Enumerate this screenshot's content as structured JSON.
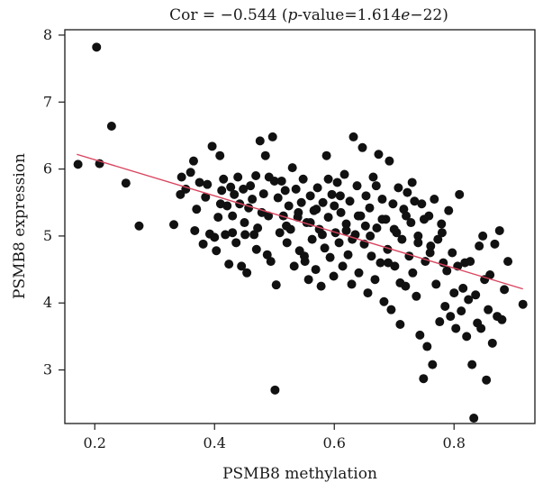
{
  "chart_data": {
    "type": "scatter",
    "title": {
      "prefix": "Cor = −0.544 (",
      "p_label": "p",
      "mid": "-value=1.614",
      "e_label": "e",
      "suffix": "−22)"
    },
    "xlabel": "PSMB8 methylation",
    "ylabel": "PSMB8 expression",
    "xlim": [
      0.15,
      0.935
    ],
    "ylim": [
      2.2,
      8.08
    ],
    "xticks": [
      {
        "value": 0.2,
        "label": "0.2"
      },
      {
        "value": 0.4,
        "label": "0.4"
      },
      {
        "value": 0.6,
        "label": "0.6"
      },
      {
        "value": 0.8,
        "label": "0.8"
      }
    ],
    "yticks": [
      {
        "value": 3,
        "label": "3"
      },
      {
        "value": 4,
        "label": "4"
      },
      {
        "value": 5,
        "label": "5"
      },
      {
        "value": 6,
        "label": "6"
      },
      {
        "value": 7,
        "label": "7"
      },
      {
        "value": 8,
        "label": "8"
      }
    ],
    "grid": false,
    "point_color": "#111111",
    "regression": {
      "x": [
        0.17,
        0.915
      ],
      "y": [
        6.22,
        4.21
      ],
      "color": "#d9455f"
    },
    "points": [
      {
        "x": 0.172,
        "y": 6.07
      },
      {
        "x": 0.203,
        "y": 7.82
      },
      {
        "x": 0.208,
        "y": 6.08
      },
      {
        "x": 0.228,
        "y": 6.64
      },
      {
        "x": 0.252,
        "y": 5.79
      },
      {
        "x": 0.274,
        "y": 5.15
      },
      {
        "x": 0.332,
        "y": 5.17
      },
      {
        "x": 0.343,
        "y": 5.62
      },
      {
        "x": 0.345,
        "y": 5.88
      },
      {
        "x": 0.352,
        "y": 5.7
      },
      {
        "x": 0.36,
        "y": 5.95
      },
      {
        "x": 0.365,
        "y": 6.12
      },
      {
        "x": 0.367,
        "y": 5.08
      },
      {
        "x": 0.37,
        "y": 5.4
      },
      {
        "x": 0.375,
        "y": 5.8
      },
      {
        "x": 0.381,
        "y": 4.88
      },
      {
        "x": 0.385,
        "y": 5.58
      },
      {
        "x": 0.388,
        "y": 5.77
      },
      {
        "x": 0.392,
        "y": 5.03
      },
      {
        "x": 0.396,
        "y": 6.34
      },
      {
        "x": 0.4,
        "y": 4.98
      },
      {
        "x": 0.403,
        "y": 4.78
      },
      {
        "x": 0.406,
        "y": 5.28
      },
      {
        "x": 0.409,
        "y": 6.2
      },
      {
        "x": 0.412,
        "y": 5.68
      },
      {
        "x": 0.415,
        "y": 5.85
      },
      {
        "x": 0.418,
        "y": 5.02
      },
      {
        "x": 0.421,
        "y": 5.45
      },
      {
        "x": 0.424,
        "y": 4.58
      },
      {
        "x": 0.427,
        "y": 5.73
      },
      {
        "x": 0.43,
        "y": 5.3
      },
      {
        "x": 0.433,
        "y": 5.62
      },
      {
        "x": 0.436,
        "y": 4.9
      },
      {
        "x": 0.439,
        "y": 5.88
      },
      {
        "x": 0.442,
        "y": 5.48
      },
      {
        "x": 0.445,
        "y": 4.55
      },
      {
        "x": 0.448,
        "y": 5.7
      },
      {
        "x": 0.451,
        "y": 5.02
      },
      {
        "x": 0.454,
        "y": 4.45
      },
      {
        "x": 0.457,
        "y": 5.42
      },
      {
        "x": 0.46,
        "y": 5.75
      },
      {
        "x": 0.463,
        "y": 5.55
      },
      {
        "x": 0.466,
        "y": 5.02
      },
      {
        "x": 0.469,
        "y": 5.9
      },
      {
        "x": 0.472,
        "y": 5.12
      },
      {
        "x": 0.476,
        "y": 6.42
      },
      {
        "x": 0.479,
        "y": 5.35
      },
      {
        "x": 0.482,
        "y": 5.63
      },
      {
        "x": 0.485,
        "y": 6.2
      },
      {
        "x": 0.488,
        "y": 4.72
      },
      {
        "x": 0.491,
        "y": 5.88
      },
      {
        "x": 0.494,
        "y": 4.62
      },
      {
        "x": 0.497,
        "y": 6.48
      },
      {
        "x": 0.5,
        "y": 5.82
      },
      {
        "x": 0.503,
        "y": 4.27
      },
      {
        "x": 0.501,
        "y": 2.7
      },
      {
        "x": 0.506,
        "y": 5.57
      },
      {
        "x": 0.509,
        "y": 5.05
      },
      {
        "x": 0.512,
        "y": 5.82
      },
      {
        "x": 0.515,
        "y": 5.3
      },
      {
        "x": 0.518,
        "y": 5.68
      },
      {
        "x": 0.521,
        "y": 4.9
      },
      {
        "x": 0.524,
        "y": 5.45
      },
      {
        "x": 0.527,
        "y": 5.1
      },
      {
        "x": 0.53,
        "y": 6.02
      },
      {
        "x": 0.533,
        "y": 4.55
      },
      {
        "x": 0.536,
        "y": 5.7
      },
      {
        "x": 0.539,
        "y": 5.28
      },
      {
        "x": 0.542,
        "y": 4.78
      },
      {
        "x": 0.545,
        "y": 5.5
      },
      {
        "x": 0.548,
        "y": 5.85
      },
      {
        "x": 0.551,
        "y": 4.62
      },
      {
        "x": 0.554,
        "y": 5.2
      },
      {
        "x": 0.557,
        "y": 4.35
      },
      {
        "x": 0.56,
        "y": 5.6
      },
      {
        "x": 0.563,
        "y": 4.95
      },
      {
        "x": 0.566,
        "y": 5.38
      },
      {
        "x": 0.569,
        "y": 4.5
      },
      {
        "x": 0.572,
        "y": 5.72
      },
      {
        "x": 0.575,
        "y": 5.1
      },
      {
        "x": 0.578,
        "y": 4.25
      },
      {
        "x": 0.581,
        "y": 5.5
      },
      {
        "x": 0.584,
        "y": 4.82
      },
      {
        "x": 0.587,
        "y": 6.2
      },
      {
        "x": 0.59,
        "y": 5.28
      },
      {
        "x": 0.593,
        "y": 4.68
      },
      {
        "x": 0.596,
        "y": 5.62
      },
      {
        "x": 0.599,
        "y": 4.4
      },
      {
        "x": 0.602,
        "y": 5.05
      },
      {
        "x": 0.605,
        "y": 5.8
      },
      {
        "x": 0.608,
        "y": 4.9
      },
      {
        "x": 0.611,
        "y": 5.35
      },
      {
        "x": 0.614,
        "y": 4.55
      },
      {
        "x": 0.617,
        "y": 5.92
      },
      {
        "x": 0.62,
        "y": 5.18
      },
      {
        "x": 0.623,
        "y": 4.72
      },
      {
        "x": 0.626,
        "y": 5.52
      },
      {
        "x": 0.629,
        "y": 4.28
      },
      {
        "x": 0.632,
        "y": 6.48
      },
      {
        "x": 0.635,
        "y": 5.02
      },
      {
        "x": 0.638,
        "y": 5.75
      },
      {
        "x": 0.641,
        "y": 4.45
      },
      {
        "x": 0.644,
        "y": 5.3
      },
      {
        "x": 0.647,
        "y": 6.32
      },
      {
        "x": 0.65,
        "y": 4.88
      },
      {
        "x": 0.653,
        "y": 5.6
      },
      {
        "x": 0.656,
        "y": 4.15
      },
      {
        "x": 0.659,
        "y": 5.42
      },
      {
        "x": 0.662,
        "y": 4.7
      },
      {
        "x": 0.665,
        "y": 5.88
      },
      {
        "x": 0.668,
        "y": 4.35
      },
      {
        "x": 0.671,
        "y": 5.12
      },
      {
        "x": 0.674,
        "y": 6.22
      },
      {
        "x": 0.677,
        "y": 4.6
      },
      {
        "x": 0.68,
        "y": 5.55
      },
      {
        "x": 0.683,
        "y": 4.02
      },
      {
        "x": 0.686,
        "y": 5.25
      },
      {
        "x": 0.689,
        "y": 4.8
      },
      {
        "x": 0.692,
        "y": 6.12
      },
      {
        "x": 0.695,
        "y": 3.9
      },
      {
        "x": 0.698,
        "y": 5.48
      },
      {
        "x": 0.701,
        "y": 4.55
      },
      {
        "x": 0.704,
        "y": 5.05
      },
      {
        "x": 0.707,
        "y": 5.72
      },
      {
        "x": 0.71,
        "y": 3.68
      },
      {
        "x": 0.713,
        "y": 4.95
      },
      {
        "x": 0.716,
        "y": 5.4
      },
      {
        "x": 0.719,
        "y": 4.25
      },
      {
        "x": 0.722,
        "y": 5.65
      },
      {
        "x": 0.725,
        "y": 4.7
      },
      {
        "x": 0.728,
        "y": 5.2
      },
      {
        "x": 0.731,
        "y": 4.45
      },
      {
        "x": 0.734,
        "y": 5.52
      },
      {
        "x": 0.737,
        "y": 4.1
      },
      {
        "x": 0.74,
        "y": 5.0
      },
      {
        "x": 0.743,
        "y": 3.52
      },
      {
        "x": 0.746,
        "y": 5.48
      },
      {
        "x": 0.749,
        "y": 2.87
      },
      {
        "x": 0.752,
        "y": 4.62
      },
      {
        "x": 0.755,
        "y": 3.35
      },
      {
        "x": 0.758,
        "y": 5.3
      },
      {
        "x": 0.761,
        "y": 4.85
      },
      {
        "x": 0.764,
        "y": 3.08
      },
      {
        "x": 0.767,
        "y": 5.55
      },
      {
        "x": 0.77,
        "y": 4.28
      },
      {
        "x": 0.773,
        "y": 4.95
      },
      {
        "x": 0.776,
        "y": 3.72
      },
      {
        "x": 0.779,
        "y": 5.18
      },
      {
        "x": 0.782,
        "y": 4.6
      },
      {
        "x": 0.785,
        "y": 3.95
      },
      {
        "x": 0.788,
        "y": 4.48
      },
      {
        "x": 0.791,
        "y": 5.38
      },
      {
        "x": 0.794,
        "y": 3.8
      },
      {
        "x": 0.797,
        "y": 4.75
      },
      {
        "x": 0.8,
        "y": 4.15
      },
      {
        "x": 0.803,
        "y": 3.62
      },
      {
        "x": 0.806,
        "y": 4.55
      },
      {
        "x": 0.809,
        "y": 5.62
      },
      {
        "x": 0.812,
        "y": 3.88
      },
      {
        "x": 0.815,
        "y": 4.22
      },
      {
        "x": 0.818,
        "y": 4.6
      },
      {
        "x": 0.821,
        "y": 3.5
      },
      {
        "x": 0.824,
        "y": 4.05
      },
      {
        "x": 0.827,
        "y": 4.62
      },
      {
        "x": 0.83,
        "y": 3.08
      },
      {
        "x": 0.833,
        "y": 2.28
      },
      {
        "x": 0.836,
        "y": 4.12
      },
      {
        "x": 0.839,
        "y": 3.7
      },
      {
        "x": 0.842,
        "y": 4.85
      },
      {
        "x": 0.845,
        "y": 3.62
      },
      {
        "x": 0.848,
        "y": 5.0
      },
      {
        "x": 0.851,
        "y": 4.35
      },
      {
        "x": 0.854,
        "y": 2.85
      },
      {
        "x": 0.857,
        "y": 3.9
      },
      {
        "x": 0.86,
        "y": 4.42
      },
      {
        "x": 0.864,
        "y": 3.4
      },
      {
        "x": 0.868,
        "y": 4.88
      },
      {
        "x": 0.872,
        "y": 3.8
      },
      {
        "x": 0.876,
        "y": 5.08
      },
      {
        "x": 0.88,
        "y": 3.75
      },
      {
        "x": 0.884,
        "y": 4.2
      },
      {
        "x": 0.89,
        "y": 4.62
      },
      {
        "x": 0.915,
        "y": 3.98
      },
      {
        "x": 0.64,
        "y": 5.3
      },
      {
        "x": 0.652,
        "y": 5.15
      },
      {
        "x": 0.6,
        "y": 5.45
      },
      {
        "x": 0.62,
        "y": 5.08
      },
      {
        "x": 0.58,
        "y": 5.02
      },
      {
        "x": 0.56,
        "y": 5.2
      },
      {
        "x": 0.7,
        "y": 5.1
      },
      {
        "x": 0.66,
        "y": 5.0
      },
      {
        "x": 0.54,
        "y": 5.35
      },
      {
        "x": 0.52,
        "y": 5.15
      },
      {
        "x": 0.68,
        "y": 5.25
      },
      {
        "x": 0.72,
        "y": 5.3
      },
      {
        "x": 0.61,
        "y": 5.6
      },
      {
        "x": 0.57,
        "y": 5.4
      },
      {
        "x": 0.63,
        "y": 4.95
      },
      {
        "x": 0.59,
        "y": 5.85
      },
      {
        "x": 0.67,
        "y": 5.75
      },
      {
        "x": 0.69,
        "y": 4.6
      },
      {
        "x": 0.55,
        "y": 4.7
      },
      {
        "x": 0.74,
        "y": 4.9
      },
      {
        "x": 0.75,
        "y": 5.25
      },
      {
        "x": 0.76,
        "y": 4.75
      },
      {
        "x": 0.73,
        "y": 5.8
      },
      {
        "x": 0.71,
        "y": 4.3
      },
      {
        "x": 0.78,
        "y": 5.05
      },
      {
        "x": 0.49,
        "y": 5.3
      },
      {
        "x": 0.47,
        "y": 4.8
      },
      {
        "x": 0.45,
        "y": 5.2
      },
      {
        "x": 0.43,
        "y": 5.05
      },
      {
        "x": 0.41,
        "y": 5.48
      }
    ]
  }
}
